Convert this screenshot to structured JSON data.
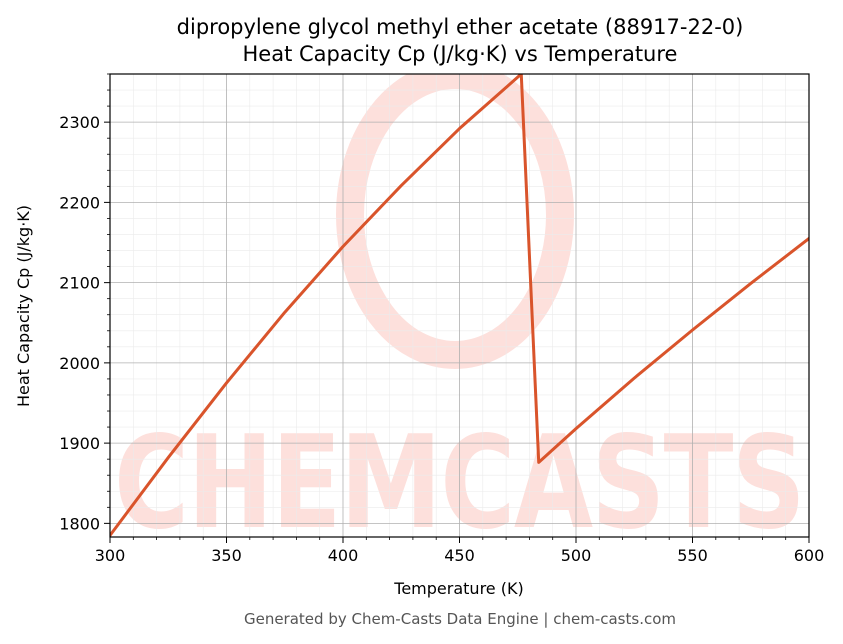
{
  "chart_data": {
    "type": "line",
    "title": "dipropylene glycol methyl ether acetate (88917-22-0)",
    "subtitle": "Heat Capacity Cp (J/kg·K) vs Temperature",
    "xlabel": "Temperature (K)",
    "ylabel": "Heat Capacity Cp (J/kg·K)",
    "xlim": [
      300,
      600
    ],
    "ylim": [
      1783,
      2360
    ],
    "xticks": [
      300,
      350,
      400,
      450,
      500,
      550,
      600
    ],
    "yticks": [
      1800,
      1900,
      2000,
      2100,
      2200,
      2300
    ],
    "grid": true,
    "legend": "none",
    "series": [
      {
        "color": "#d9542b",
        "x": [
          300,
          325,
          350,
          375,
          400,
          425,
          450,
          476.5,
          484,
          500,
          525,
          550,
          575,
          600
        ],
        "y": [
          1785,
          1882,
          1975,
          2063,
          2145,
          2221,
          2292,
          2360,
          1876,
          1918,
          1981,
          2041,
          2099,
          2155
        ]
      }
    ]
  },
  "watermark": "CHEMCASTS",
  "footer": "Generated by Chem-Casts Data Engine | chem-casts.com"
}
